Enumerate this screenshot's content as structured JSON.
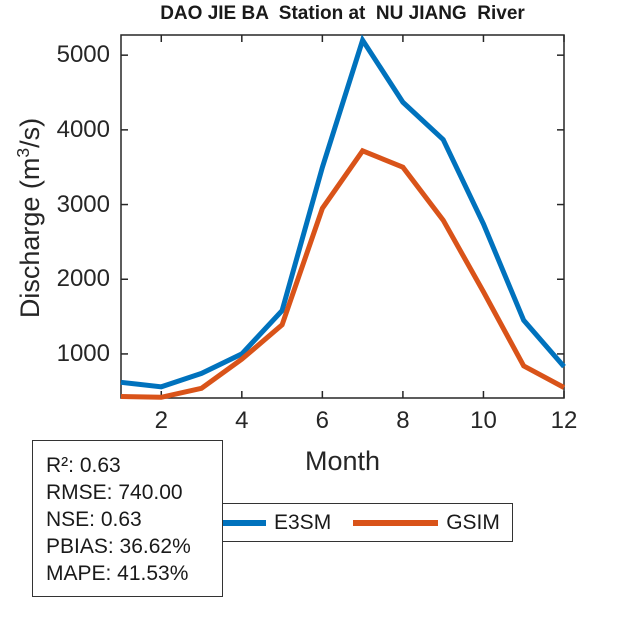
{
  "figure": {
    "title": "DAO JIE BA  Station at  NU JIANG  River",
    "background": "#ffffff"
  },
  "axes": {
    "xlabel": "Month",
    "ylabel": {
      "pre": "Discharge (m",
      "sup": "3",
      "post": "/s)"
    },
    "axis_color": "#262626"
  },
  "chart_data": {
    "type": "line",
    "title": "DAO JIE BA  Station at  NU JIANG  River",
    "xlabel": "Month",
    "ylabel": "Discharge (m^3/s)",
    "x": [
      1,
      2,
      3,
      4,
      5,
      6,
      7,
      8,
      9,
      10,
      11,
      12
    ],
    "x_ticks": [
      2,
      4,
      6,
      8,
      10,
      12
    ],
    "y_ticks": [
      1000,
      2000,
      3000,
      4000,
      5000
    ],
    "xlim": [
      1,
      12
    ],
    "ylim": [
      410,
      5270
    ],
    "grid": false,
    "series": [
      {
        "name": "E3SM",
        "color": "#0072BD",
        "values": [
          620,
          560,
          740,
          1000,
          1580,
          3500,
          5200,
          4370,
          3870,
          2740,
          1450,
          830
        ]
      },
      {
        "name": "GSIM",
        "color": "#D95319",
        "values": [
          430,
          420,
          540,
          930,
          1390,
          2950,
          3720,
          3500,
          2790,
          1830,
          840,
          550
        ]
      }
    ],
    "legend_position": "below-axis-horizontal"
  },
  "legend": {
    "items": [
      {
        "label": "E3SM",
        "color": "#0072BD"
      },
      {
        "label": "GSIM",
        "color": "#D95319"
      }
    ]
  },
  "stats_box": {
    "lines": [
      "R²: 0.63",
      "RMSE: 740.00",
      "NSE: 0.63",
      "PBIAS: 36.62%",
      "MAPE: 41.53%"
    ]
  }
}
